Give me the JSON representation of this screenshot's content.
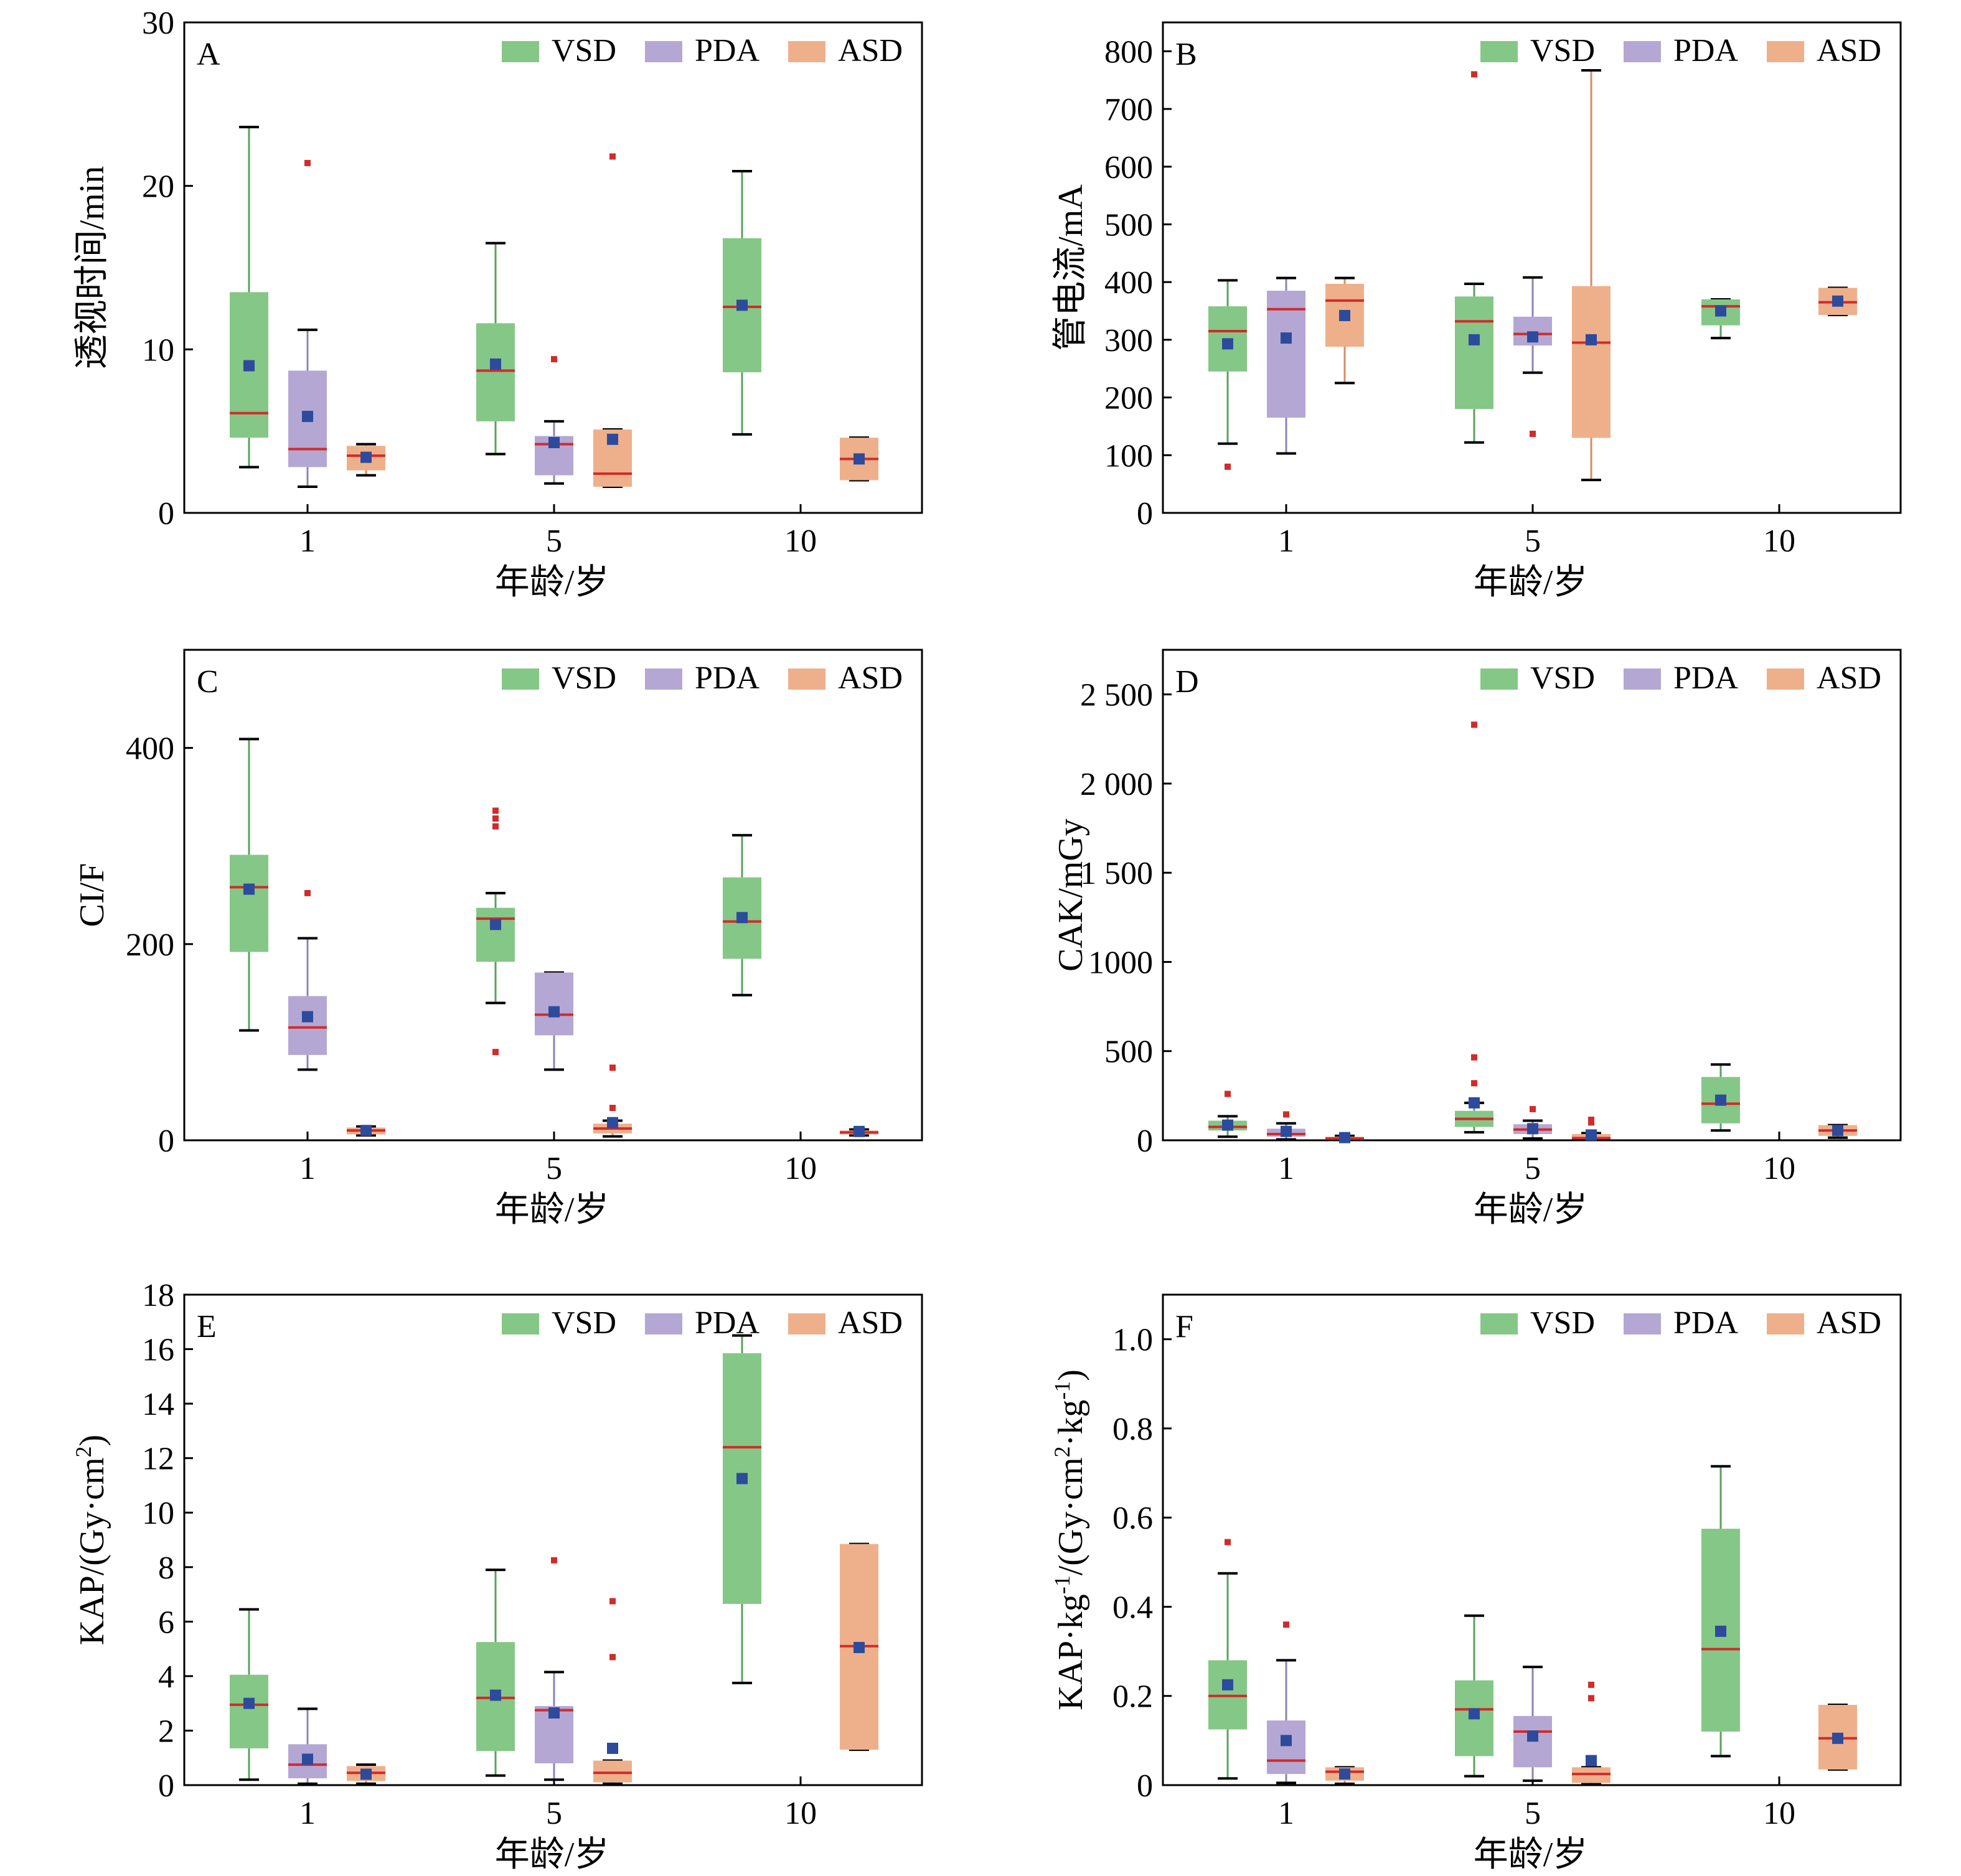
{
  "figure": {
    "colors": {
      "VSD": "#85c786",
      "PDA": "#b4a7d4",
      "ASD": "#eeb08b",
      "whisker_VSD": "#5aa15d",
      "whisker_PDA": "#8f82b5",
      "whisker_ASD": "#d48c66",
      "median": "#d12b2b",
      "mean": "#2d4b9c",
      "outlier": "#d12b2b"
    },
    "mean_marker": "square",
    "outlier_marker": "square"
  },
  "chart_data": [
    {
      "panel": "A",
      "type": "box",
      "xlabel": "年龄/岁",
      "ylabel": "透视时间/min",
      "ylim": [
        0,
        30
      ],
      "yticks": [
        0,
        10,
        20,
        30
      ],
      "ytick_labels": [
        "0",
        "10",
        "20",
        "30"
      ],
      "categories": [
        "1",
        "5",
        "10"
      ],
      "legend": [
        "VSD",
        "PDA",
        "ASD"
      ],
      "series": [
        {
          "name": "VSD",
          "boxes": [
            {
              "category": "1",
              "min": 2.8,
              "q1": 4.6,
              "median": 6.1,
              "q3": 13.5,
              "max": 23.6,
              "mean": 9.0,
              "outliers": []
            },
            {
              "category": "5",
              "min": 3.6,
              "q1": 5.6,
              "median": 8.7,
              "q3": 11.6,
              "max": 16.5,
              "mean": 9.1,
              "outliers": []
            },
            {
              "category": "10",
              "min": 4.8,
              "q1": 8.6,
              "median": 12.6,
              "q3": 16.8,
              "max": 20.9,
              "mean": 12.7,
              "outliers": []
            }
          ]
        },
        {
          "name": "PDA",
          "boxes": [
            {
              "category": "1",
              "min": 1.6,
              "q1": 2.8,
              "median": 3.9,
              "q3": 8.7,
              "max": 11.2,
              "mean": 5.9,
              "outliers": [
                21.4
              ]
            },
            {
              "category": "5",
              "min": 1.8,
              "q1": 2.3,
              "median": 4.2,
              "q3": 4.7,
              "max": 5.6,
              "mean": 4.3,
              "outliers": [
                9.4
              ]
            },
            {
              "category": "10",
              "empty": true
            }
          ]
        },
        {
          "name": "ASD",
          "boxes": [
            {
              "category": "1",
              "min": 2.3,
              "q1": 2.6,
              "median": 3.5,
              "q3": 4.1,
              "max": 4.2,
              "mean": 3.4,
              "outliers": []
            },
            {
              "category": "5",
              "min": 1.6,
              "q1": 1.6,
              "median": 2.4,
              "q3": 5.1,
              "max": 5.1,
              "mean": 4.5,
              "outliers": [
                21.8
              ]
            },
            {
              "category": "10",
              "min": 2.0,
              "q1": 2.0,
              "median": 3.3,
              "q3": 4.6,
              "max": 4.6,
              "mean": 3.3,
              "outliers": []
            }
          ]
        }
      ]
    },
    {
      "panel": "B",
      "type": "box",
      "xlabel": "年龄/岁",
      "ylabel": "管电流/mA",
      "ylim": [
        0,
        850
      ],
      "yticks": [
        0,
        100,
        200,
        300,
        400,
        500,
        600,
        700,
        800
      ],
      "ytick_labels": [
        "0",
        "100",
        "200",
        "300",
        "400",
        "500",
        "600",
        "700",
        "800"
      ],
      "categories": [
        "1",
        "5",
        "10"
      ],
      "legend": [
        "VSD",
        "PDA",
        "ASD"
      ],
      "series": [
        {
          "name": "VSD",
          "boxes": [
            {
              "category": "1",
              "min": 120,
              "q1": 245,
              "median": 315,
              "q3": 358,
              "max": 403,
              "mean": 293,
              "outliers": [
                80
              ]
            },
            {
              "category": "5",
              "min": 122,
              "q1": 180,
              "median": 332,
              "q3": 375,
              "max": 397,
              "mean": 300,
              "outliers": [
                760
              ]
            },
            {
              "category": "10",
              "min": 303,
              "q1": 325,
              "median": 358,
              "q3": 370,
              "max": 370,
              "mean": 350,
              "outliers": []
            }
          ]
        },
        {
          "name": "PDA",
          "boxes": [
            {
              "category": "1",
              "min": 103,
              "q1": 165,
              "median": 353,
              "q3": 385,
              "max": 407,
              "mean": 303,
              "outliers": []
            },
            {
              "category": "5",
              "min": 243,
              "q1": 290,
              "median": 310,
              "q3": 340,
              "max": 408,
              "mean": 305,
              "outliers": [
                137
              ]
            },
            {
              "category": "10",
              "empty": true
            }
          ]
        },
        {
          "name": "ASD",
          "boxes": [
            {
              "category": "1",
              "min": 225,
              "q1": 288,
              "median": 368,
              "q3": 397,
              "max": 407,
              "mean": 342,
              "outliers": []
            },
            {
              "category": "5",
              "min": 57,
              "q1": 130,
              "median": 295,
              "q3": 393,
              "max": 767,
              "mean": 300,
              "outliers": []
            },
            {
              "category": "10",
              "min": 343,
              "q1": 343,
              "median": 365,
              "q3": 390,
              "max": 390,
              "mean": 367,
              "outliers": []
            }
          ]
        }
      ]
    },
    {
      "panel": "C",
      "type": "box",
      "xlabel": "年龄/岁",
      "ylabel": "CI/F",
      "ylim": [
        0,
        500
      ],
      "yticks": [
        0,
        200,
        400
      ],
      "ytick_labels": [
        "0",
        "200",
        "400"
      ],
      "categories": [
        "1",
        "5",
        "10"
      ],
      "legend": [
        "VSD",
        "PDA",
        "ASD"
      ],
      "series": [
        {
          "name": "VSD",
          "boxes": [
            {
              "category": "1",
              "min": 112,
              "q1": 192,
              "median": 258,
              "q3": 291,
              "max": 409,
              "mean": 256,
              "outliers": []
            },
            {
              "category": "5",
              "min": 140,
              "q1": 182,
              "median": 226,
              "q3": 237,
              "max": 252,
              "mean": 220,
              "outliers": [
                90,
                320,
                328,
                336
              ]
            },
            {
              "category": "10",
              "min": 148,
              "q1": 185,
              "median": 223,
              "q3": 268,
              "max": 311,
              "mean": 227,
              "outliers": []
            }
          ]
        },
        {
          "name": "PDA",
          "boxes": [
            {
              "category": "1",
              "min": 72,
              "q1": 87,
              "median": 115,
              "q3": 147,
              "max": 206,
              "mean": 126,
              "outliers": [
                252
              ]
            },
            {
              "category": "5",
              "min": 72,
              "q1": 107,
              "median": 128,
              "q3": 171,
              "max": 171,
              "mean": 131,
              "outliers": []
            },
            {
              "category": "10",
              "empty": true
            }
          ]
        },
        {
          "name": "ASD",
          "boxes": [
            {
              "category": "1",
              "min": 5,
              "q1": 6,
              "median": 10,
              "q3": 13,
              "max": 14,
              "mean": 10,
              "outliers": []
            },
            {
              "category": "5",
              "min": 4,
              "q1": 7,
              "median": 12,
              "q3": 17,
              "max": 20,
              "mean": 18,
              "outliers": [
                33,
                74
              ]
            },
            {
              "category": "10",
              "min": 5,
              "q1": 6,
              "median": 8,
              "q3": 10,
              "max": 11,
              "mean": 9,
              "outliers": []
            }
          ]
        }
      ]
    },
    {
      "panel": "D",
      "type": "box",
      "xlabel": "年龄/岁",
      "ylabel": "CAK/mGy",
      "ylim": [
        0,
        2750
      ],
      "yticks": [
        0,
        500,
        1000,
        1500,
        2000,
        2500
      ],
      "ytick_labels": [
        "0",
        "500",
        "1000",
        "1 500",
        "2 000",
        "2 500"
      ],
      "categories": [
        "1",
        "5",
        "10"
      ],
      "legend": [
        "VSD",
        "PDA",
        "ASD"
      ],
      "series": [
        {
          "name": "VSD",
          "boxes": [
            {
              "category": "1",
              "min": 20,
              "q1": 55,
              "median": 75,
              "q3": 110,
              "max": 135,
              "mean": 85,
              "outliers": [
                260
              ]
            },
            {
              "category": "5",
              "min": 45,
              "q1": 75,
              "median": 120,
              "q3": 165,
              "max": 210,
              "mean": 210,
              "outliers": [
                320,
                465,
                2330
              ]
            },
            {
              "category": "10",
              "min": 55,
              "q1": 95,
              "median": 205,
              "q3": 355,
              "max": 425,
              "mean": 225,
              "outliers": []
            }
          ]
        },
        {
          "name": "PDA",
          "boxes": [
            {
              "category": "1",
              "min": 5,
              "q1": 20,
              "median": 35,
              "q3": 65,
              "max": 95,
              "mean": 50,
              "outliers": [
                145
              ]
            },
            {
              "category": "5",
              "min": 10,
              "q1": 35,
              "median": 60,
              "q3": 90,
              "max": 110,
              "mean": 65,
              "outliers": [
                175
              ]
            },
            {
              "category": "10",
              "empty": true
            }
          ]
        },
        {
          "name": "ASD",
          "boxes": [
            {
              "category": "1",
              "min": 2,
              "q1": 5,
              "median": 10,
              "q3": 20,
              "max": 25,
              "mean": 15,
              "outliers": []
            },
            {
              "category": "5",
              "min": 3,
              "q1": 5,
              "median": 12,
              "q3": 35,
              "max": 40,
              "mean": 30,
              "outliers": [
                100,
                115
              ]
            },
            {
              "category": "10",
              "min": 15,
              "q1": 25,
              "median": 55,
              "q3": 85,
              "max": 85,
              "mean": 55,
              "outliers": []
            }
          ]
        }
      ]
    },
    {
      "panel": "E",
      "type": "box",
      "xlabel": "年龄/岁",
      "ylabel_parts": [
        "KAP/(Gy·cm",
        "2",
        ")"
      ],
      "ylim": [
        0,
        18
      ],
      "yticks": [
        0,
        2,
        4,
        6,
        8,
        10,
        12,
        14,
        16,
        18
      ],
      "ytick_labels": [
        "0",
        "2",
        "4",
        "6",
        "8",
        "10",
        "12",
        "14",
        "16",
        "18"
      ],
      "categories": [
        "1",
        "5",
        "10"
      ],
      "legend": [
        "VSD",
        "PDA",
        "ASD"
      ],
      "series": [
        {
          "name": "VSD",
          "boxes": [
            {
              "category": "1",
              "min": 0.2,
              "q1": 1.35,
              "median": 2.95,
              "q3": 4.05,
              "max": 6.45,
              "mean": 3.0,
              "outliers": []
            },
            {
              "category": "5",
              "min": 0.35,
              "q1": 1.25,
              "median": 3.2,
              "q3": 5.25,
              "max": 7.9,
              "mean": 3.3,
              "outliers": []
            },
            {
              "category": "10",
              "min": 3.75,
              "q1": 6.65,
              "median": 12.4,
              "q3": 15.85,
              "max": 16.5,
              "mean": 11.25,
              "outliers": []
            }
          ]
        },
        {
          "name": "PDA",
          "boxes": [
            {
              "category": "1",
              "min": 0.05,
              "q1": 0.25,
              "median": 0.75,
              "q3": 1.5,
              "max": 2.8,
              "mean": 0.95,
              "outliers": []
            },
            {
              "category": "5",
              "min": 0.2,
              "q1": 0.8,
              "median": 2.75,
              "q3": 2.9,
              "max": 4.15,
              "mean": 2.65,
              "outliers": [
                8.25
              ]
            },
            {
              "category": "10",
              "empty": true
            }
          ]
        },
        {
          "name": "ASD",
          "boxes": [
            {
              "category": "1",
              "min": 0.05,
              "q1": 0.15,
              "median": 0.45,
              "q3": 0.7,
              "max": 0.75,
              "mean": 0.4,
              "outliers": []
            },
            {
              "category": "5",
              "min": 0.05,
              "q1": 0.1,
              "median": 0.45,
              "q3": 0.9,
              "max": 0.9,
              "mean": 1.35,
              "outliers": [
                4.7,
                6.75
              ]
            },
            {
              "category": "10",
              "min": 1.3,
              "q1": 1.3,
              "median": 5.1,
              "q3": 8.85,
              "max": 8.85,
              "mean": 5.05,
              "outliers": []
            }
          ]
        }
      ]
    },
    {
      "panel": "F",
      "type": "box",
      "xlabel": "年龄/岁",
      "ylabel_parts": [
        "KAP·kg",
        "-1",
        "/(Gy·cm",
        "2",
        "·kg",
        "-1",
        ")"
      ],
      "ylim": [
        0,
        1.1
      ],
      "yticks": [
        0,
        0.2,
        0.4,
        0.6,
        0.8,
        1.0
      ],
      "ytick_labels": [
        "0",
        "0.2",
        "0.4",
        "0.6",
        "0.8",
        "1.0"
      ],
      "categories": [
        "1",
        "5",
        "10"
      ],
      "legend": [
        "VSD",
        "PDA",
        "ASD"
      ],
      "series": [
        {
          "name": "VSD",
          "boxes": [
            {
              "category": "1",
              "min": 0.015,
              "q1": 0.125,
              "median": 0.2,
              "q3": 0.28,
              "max": 0.475,
              "mean": 0.225,
              "outliers": [
                0.545
              ]
            },
            {
              "category": "5",
              "min": 0.02,
              "q1": 0.065,
              "median": 0.17,
              "q3": 0.235,
              "max": 0.38,
              "mean": 0.16,
              "outliers": []
            },
            {
              "category": "10",
              "min": 0.065,
              "q1": 0.12,
              "median": 0.305,
              "q3": 0.575,
              "max": 0.715,
              "mean": 0.345,
              "outliers": []
            }
          ]
        },
        {
          "name": "PDA",
          "boxes": [
            {
              "category": "1",
              "min": 0.005,
              "q1": 0.025,
              "median": 0.055,
              "q3": 0.145,
              "max": 0.28,
              "mean": 0.1,
              "outliers": [
                0.36
              ]
            },
            {
              "category": "5",
              "min": 0.01,
              "q1": 0.04,
              "median": 0.12,
              "q3": 0.155,
              "max": 0.265,
              "mean": 0.11,
              "outliers": []
            },
            {
              "category": "10",
              "empty": true
            }
          ]
        },
        {
          "name": "ASD",
          "boxes": [
            {
              "category": "1",
              "min": 0.003,
              "q1": 0.01,
              "median": 0.03,
              "q3": 0.04,
              "max": 0.04,
              "mean": 0.025,
              "outliers": []
            },
            {
              "category": "5",
              "min": 0.002,
              "q1": 0.005,
              "median": 0.025,
              "q3": 0.04,
              "max": 0.04,
              "mean": 0.055,
              "outliers": [
                0.195,
                0.225
              ]
            },
            {
              "category": "10",
              "min": 0.035,
              "q1": 0.035,
              "median": 0.105,
              "q3": 0.18,
              "max": 0.18,
              "mean": 0.105,
              "outliers": []
            }
          ]
        }
      ]
    }
  ]
}
